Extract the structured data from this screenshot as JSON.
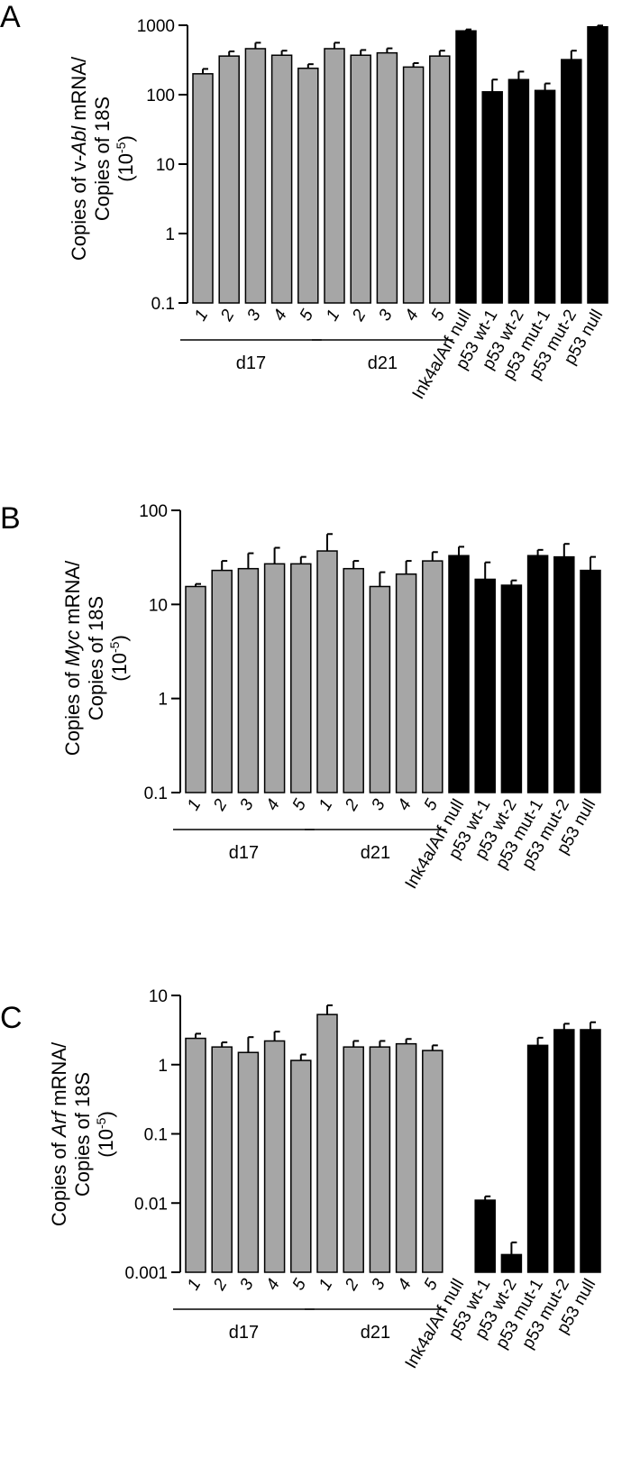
{
  "figure": {
    "panels": [
      "A",
      "B",
      "C"
    ]
  },
  "colors": {
    "gray_bar": "#a6a6a6",
    "black_bar": "#000000",
    "axis": "#000000"
  },
  "chart_data": [
    {
      "type": "bar",
      "panel": "A",
      "ylabel_parts": [
        "Copies of ",
        "v-",
        "Abl",
        " mRNA/",
        "Copies of 18S",
        "(10",
        "-5",
        ")"
      ],
      "yscale": "log",
      "ylim": [
        0.1,
        1000
      ],
      "yticks": [
        0.1,
        1,
        10,
        100,
        1000
      ],
      "ytick_labels": [
        "0.1",
        "1",
        "10",
        "100",
        "1000"
      ],
      "categories": [
        "1",
        "2",
        "3",
        "4",
        "5",
        "1",
        "2",
        "3",
        "4",
        "5",
        "Ink4a/Arf null",
        "p53 wt-1",
        "p53 wt-2",
        "p53 mut-1",
        "p53 mut-2",
        "p53 null"
      ],
      "groups": [
        {
          "label": "d17",
          "start": 0,
          "end": 4
        },
        {
          "label": "d21",
          "start": 5,
          "end": 9
        }
      ],
      "values": [
        200,
        360,
        460,
        370,
        240,
        460,
        370,
        400,
        250,
        360,
        830,
        110,
        165,
        115,
        320,
        950
      ],
      "errors_upper": [
        235,
        420,
        560,
        430,
        275,
        560,
        440,
        465,
        285,
        430,
        870,
        165,
        215,
        145,
        430,
        990
      ],
      "bar_colors": [
        "gray",
        "gray",
        "gray",
        "gray",
        "gray",
        "gray",
        "gray",
        "gray",
        "gray",
        "gray",
        "black",
        "black",
        "black",
        "black",
        "black",
        "black"
      ]
    },
    {
      "type": "bar",
      "panel": "B",
      "ylabel_parts": [
        "Copies of ",
        "",
        "Myc",
        " mRNA/",
        "Copies of 18S",
        "(10",
        "-5",
        ")"
      ],
      "yscale": "log",
      "ylim": [
        0.1,
        100
      ],
      "yticks": [
        0.1,
        1,
        10,
        100
      ],
      "ytick_labels": [
        "0.1",
        "1",
        "10",
        "100"
      ],
      "categories": [
        "1",
        "2",
        "3",
        "4",
        "5",
        "1",
        "2",
        "3",
        "4",
        "5",
        "Ink4a/Arf null",
        "p53 wt-1",
        "p53 wt-2",
        "p53 mut-1",
        "p53 mut-2",
        "p53 null"
      ],
      "groups": [
        {
          "label": "d17",
          "start": 0,
          "end": 4
        },
        {
          "label": "d21",
          "start": 5,
          "end": 9
        }
      ],
      "values": [
        15.5,
        23,
        24,
        27,
        27,
        37,
        24,
        15.5,
        21,
        29,
        33,
        18.5,
        16,
        33,
        32,
        23
      ],
      "errors_upper": [
        16.5,
        29,
        35,
        40,
        32,
        56,
        29,
        22,
        29,
        36,
        41,
        28,
        18,
        38,
        44,
        32
      ],
      "bar_colors": [
        "gray",
        "gray",
        "gray",
        "gray",
        "gray",
        "gray",
        "gray",
        "gray",
        "gray",
        "gray",
        "black",
        "black",
        "black",
        "black",
        "black",
        "black"
      ]
    },
    {
      "type": "bar",
      "panel": "C",
      "ylabel_parts": [
        "Copies of ",
        "",
        "Arf",
        " mRNA/",
        "Copies of 18S",
        "(10",
        "-5",
        ")"
      ],
      "yscale": "log",
      "ylim": [
        0.001,
        10
      ],
      "yticks": [
        0.001,
        0.01,
        0.1,
        1,
        10
      ],
      "ytick_labels": [
        "0.001",
        "0.01",
        "0.1",
        "1",
        "10"
      ],
      "categories": [
        "1",
        "2",
        "3",
        "4",
        "5",
        "1",
        "2",
        "3",
        "4",
        "5",
        "Ink4a/Arf null",
        "p53 wt-1",
        "p53 wt-2",
        "p53 mut-1",
        "p53 mut-2",
        "p53 null"
      ],
      "groups": [
        {
          "label": "d17",
          "start": 0,
          "end": 4
        },
        {
          "label": "d21",
          "start": 5,
          "end": 9
        }
      ],
      "values": [
        2.4,
        1.8,
        1.5,
        2.2,
        1.15,
        5.3,
        1.8,
        1.8,
        2.0,
        1.6,
        null,
        0.011,
        0.0018,
        1.9,
        3.2,
        3.2
      ],
      "errors_upper": [
        2.8,
        2.1,
        2.5,
        3.0,
        1.4,
        7.2,
        2.2,
        2.2,
        2.35,
        1.9,
        null,
        0.0125,
        0.0027,
        2.45,
        3.9,
        4.1
      ],
      "bar_colors": [
        "gray",
        "gray",
        "gray",
        "gray",
        "gray",
        "gray",
        "gray",
        "gray",
        "gray",
        "gray",
        "black",
        "black",
        "black",
        "black",
        "black",
        "black"
      ]
    }
  ]
}
